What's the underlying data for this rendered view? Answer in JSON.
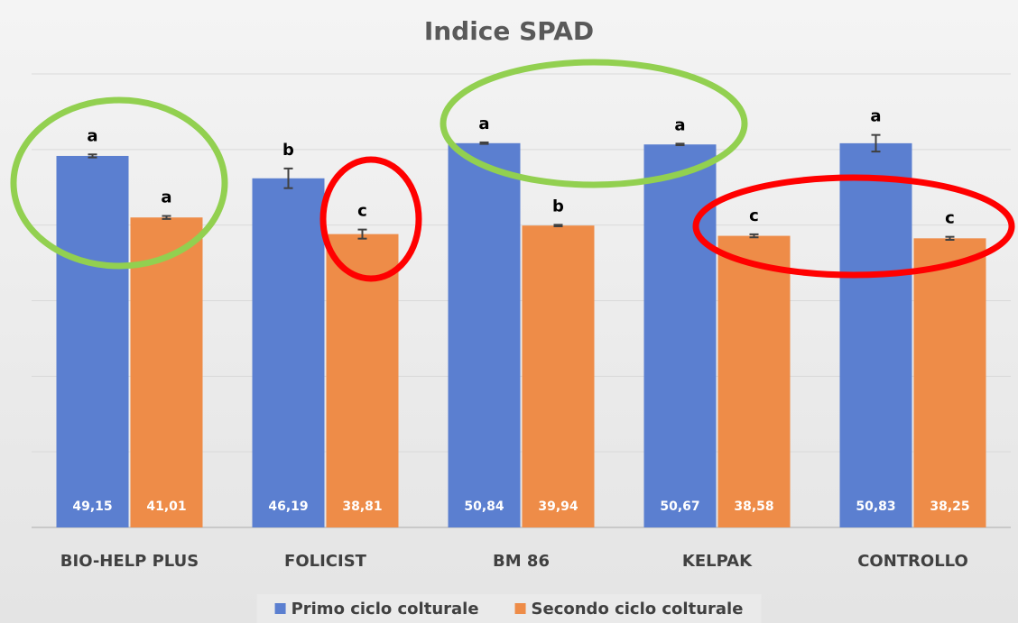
{
  "chart_data": {
    "type": "bar",
    "title": "Indice SPAD",
    "categories": [
      "BIO-HELP PLUS",
      "FOLICIST",
      "BM 86",
      "KELPAK",
      "CONTROLLO"
    ],
    "series": [
      {
        "name": "Primo ciclo colturale",
        "color": "#5b7fd0",
        "values": [
          49.15,
          46.19,
          50.84,
          50.67,
          50.83
        ],
        "value_labels": [
          "49,15",
          "46,19",
          "50,84",
          "50,67",
          "50,83"
        ],
        "errors": [
          0.2,
          1.3,
          0.1,
          0.1,
          1.1
        ],
        "letters": [
          "a",
          "b",
          "a",
          "a",
          "a"
        ]
      },
      {
        "name": "Secondo ciclo colturale",
        "color": "#ee8c48",
        "values": [
          41.01,
          38.81,
          39.94,
          38.58,
          38.25
        ],
        "value_labels": [
          "41,01",
          "38,81",
          "39,94",
          "38,58",
          "38,25"
        ],
        "errors": [
          0.2,
          0.6,
          0.1,
          0.2,
          0.2
        ],
        "letters": [
          "a",
          "c",
          "b",
          "c",
          "c"
        ]
      }
    ],
    "ylim": [
      0,
      60
    ],
    "yticks": [
      0,
      10,
      20,
      30,
      40,
      50,
      60
    ],
    "grid": true
  }
}
